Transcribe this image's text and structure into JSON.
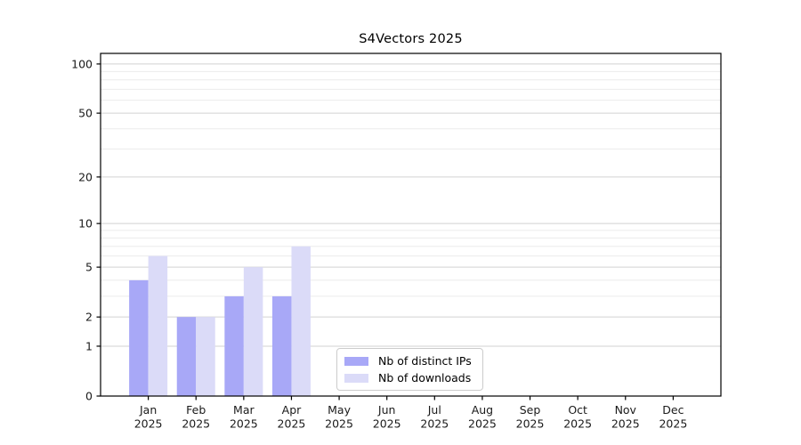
{
  "chart_data": {
    "type": "bar",
    "title": "S4Vectors 2025",
    "categories": [
      "Jan",
      "Feb",
      "Mar",
      "Apr",
      "May",
      "Jun",
      "Jul",
      "Aug",
      "Sep",
      "Oct",
      "Nov",
      "Dec"
    ],
    "x_sub_label": "2025",
    "series": [
      {
        "name": "Nb of distinct IPs",
        "color": "#a8a8f7",
        "values": [
          4,
          2,
          3,
          3,
          0,
          0,
          0,
          0,
          0,
          0,
          0,
          0
        ]
      },
      {
        "name": "Nb of downloads",
        "color": "#dbdbf8",
        "values": [
          6,
          2,
          5,
          7,
          0,
          0,
          0,
          0,
          0,
          0,
          0,
          0
        ]
      }
    ],
    "y_scale": "log1p",
    "y_ticks": [
      0,
      1,
      2,
      5,
      10,
      20,
      50,
      100
    ],
    "y_minor_ticks": [
      3,
      4,
      6,
      7,
      8,
      9,
      30,
      40,
      60,
      70,
      80,
      90
    ],
    "ylim": [
      0,
      116
    ],
    "xlabel": "",
    "ylabel": "",
    "grid": "horizontal",
    "legend_position": "lower center",
    "colors": {
      "axis": "#000000",
      "tick_text": "#1a1a1a",
      "major_grid": "#d2d2d2",
      "minor_grid": "#ebebeb",
      "background": "#ffffff"
    }
  }
}
